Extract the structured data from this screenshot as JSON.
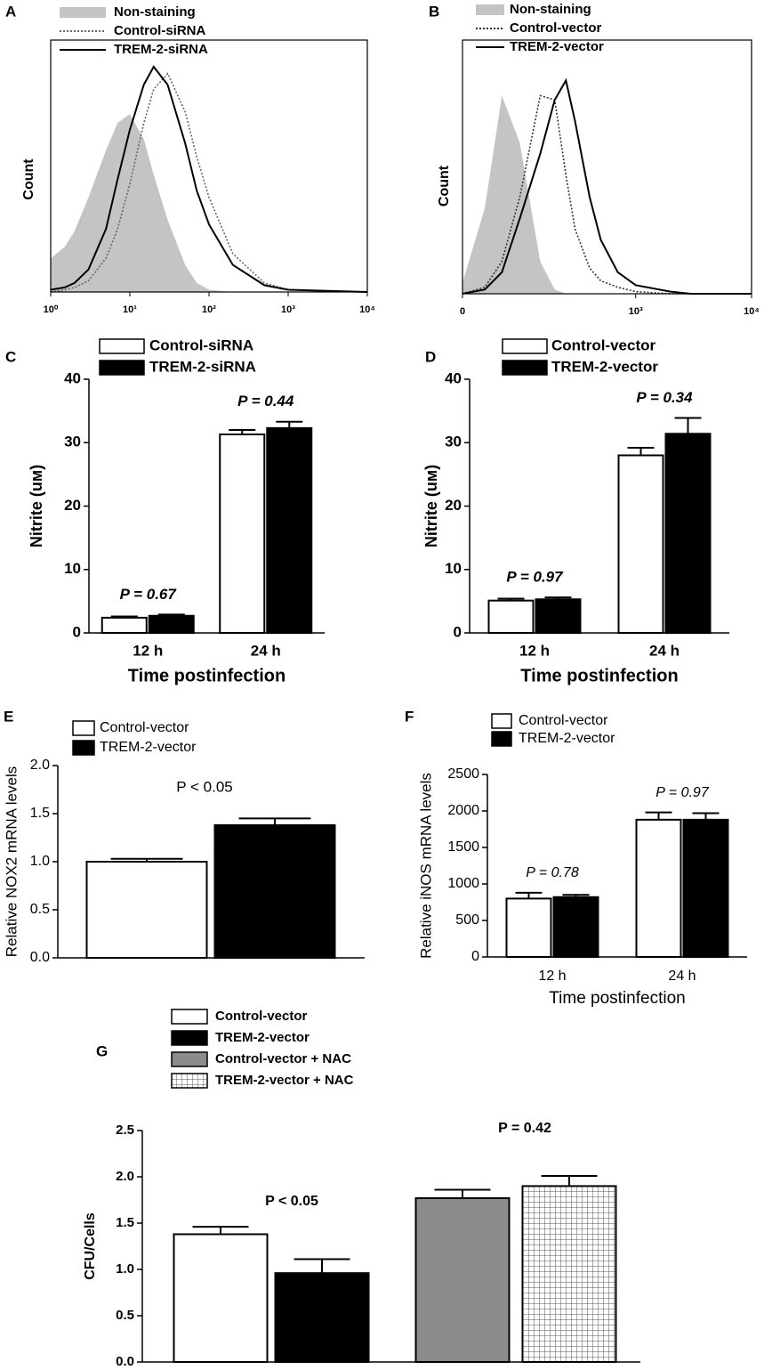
{
  "chart_data": [
    {
      "type": "line",
      "label": "A",
      "ylabel": "Count",
      "xscale": "log",
      "x": [
        1,
        1.5,
        2,
        3,
        5,
        7,
        10,
        15,
        20,
        30,
        50,
        70,
        100,
        200,
        500,
        1000,
        10000
      ],
      "xlim": [
        1,
        10000
      ],
      "xticks": [
        {
          "value": 1,
          "label": "10⁰"
        },
        {
          "value": 10,
          "label": "10¹"
        },
        {
          "value": 100,
          "label": "10²"
        },
        {
          "value": 1000,
          "label": "10³"
        },
        {
          "value": 10000,
          "label": "10⁴"
        }
      ],
      "ylim": [
        0,
        100
      ],
      "series": [
        {
          "name": "Non-staining",
          "color": "#c4c4c4",
          "style": "filled",
          "values": [
            15,
            20,
            27,
            42,
            63,
            75,
            79,
            68,
            52,
            32,
            12,
            4,
            1,
            0,
            0,
            0,
            0
          ]
        },
        {
          "name": "Control-siRNA",
          "color": "#666666",
          "style": "dotted",
          "values": [
            0,
            1,
            2,
            5,
            15,
            28,
            48,
            75,
            90,
            97,
            80,
            60,
            42,
            17,
            4,
            1,
            0
          ]
        },
        {
          "name": "TREM-2-siRNA",
          "color": "#000000",
          "style": "solid",
          "values": [
            1,
            2,
            4,
            10,
            28,
            50,
            72,
            92,
            100,
            92,
            66,
            45,
            30,
            12,
            3,
            1,
            0
          ]
        }
      ]
    },
    {
      "type": "line",
      "label": "B",
      "ylabel": "Count",
      "xscale": "log",
      "x": [
        32,
        50,
        70,
        100,
        150,
        200,
        250,
        300,
        400,
        500,
        700,
        1000,
        2000,
        3000,
        10000
      ],
      "xlim": [
        32,
        10000
      ],
      "xticks": [
        0,
        {
          "value": 1000,
          "label": "10³"
        },
        {
          "value": 10000,
          "label": "10⁴"
        }
      ],
      "ylim": [
        0,
        100
      ],
      "series": [
        {
          "name": "Non-staining",
          "color": "#c4c4c4",
          "style": "filled",
          "values": [
            5,
            40,
            92,
            70,
            15,
            2,
            0,
            0,
            0,
            0,
            0,
            0,
            0,
            0,
            0
          ]
        },
        {
          "name": "Control-vector",
          "color": "#333333",
          "style": "dotted",
          "values": [
            0,
            3,
            15,
            45,
            92,
            90,
            55,
            30,
            12,
            6,
            3,
            1,
            0,
            0,
            0
          ]
        },
        {
          "name": "TREM-2-vector",
          "color": "#000000",
          "style": "solid",
          "values": [
            0,
            2,
            10,
            35,
            65,
            90,
            99,
            80,
            45,
            25,
            10,
            4,
            1,
            0,
            0
          ]
        }
      ]
    },
    {
      "type": "bar",
      "label": "C",
      "ylabel": "Nitrite (uᴍ)",
      "xlabel": "Time postinfection",
      "categories": [
        "12 h",
        "24 h"
      ],
      "annotations": [
        "P = 0.67",
        "P = 0.44"
      ],
      "ylim": [
        0,
        40
      ],
      "yticks": [
        0,
        10,
        20,
        30,
        40
      ],
      "series": [
        {
          "name": "Control-siRNA",
          "color": "#ffffff",
          "values": [
            2.4,
            31.3
          ],
          "errors": [
            0.2,
            0.7
          ]
        },
        {
          "name": "TREM-2-siRNA",
          "color": "#000000",
          "values": [
            2.7,
            32.3
          ],
          "errors": [
            0.2,
            1.0
          ]
        }
      ]
    },
    {
      "type": "bar",
      "label": "D",
      "ylabel": "Nitrite (uᴍ)",
      "xlabel": "Time postinfection",
      "categories": [
        "12 h",
        "24 h"
      ],
      "annotations": [
        "P = 0.97",
        "P = 0.34"
      ],
      "ylim": [
        0,
        40
      ],
      "yticks": [
        0,
        10,
        20,
        30,
        40
      ],
      "series": [
        {
          "name": "Control-vector",
          "color": "#ffffff",
          "values": [
            5.1,
            28.0
          ],
          "errors": [
            0.3,
            1.2
          ]
        },
        {
          "name": "TREM-2-vector",
          "color": "#000000",
          "values": [
            5.3,
            31.4
          ],
          "errors": [
            0.3,
            2.5
          ]
        }
      ]
    },
    {
      "type": "bar",
      "label": "E",
      "ylabel": "Relative NOX2 mRNA levels",
      "annotations": [
        "P < 0.05"
      ],
      "ylim": [
        0,
        2
      ],
      "yticks": [
        {
          "value": 0,
          "label": "0.0"
        },
        0.5,
        {
          "value": 1,
          "label": "1.0"
        },
        1.5,
        {
          "value": 2,
          "label": "2.0"
        }
      ],
      "series": [
        {
          "name": "Control-vector",
          "color": "#ffffff",
          "values": [
            1.0
          ],
          "errors": [
            0.03
          ]
        },
        {
          "name": "TREM-2-vector",
          "color": "#000000",
          "values": [
            1.38
          ],
          "errors": [
            0.07
          ]
        }
      ]
    },
    {
      "type": "bar",
      "label": "F",
      "ylabel": "Relative iNOS mRNA levels",
      "xlabel": "Time postinfection",
      "categories": [
        "12 h",
        "24 h"
      ],
      "annotations": [
        "P = 0.78",
        "P = 0.97"
      ],
      "ylim": [
        0,
        2500
      ],
      "yticks": [
        0,
        500,
        1000,
        1500,
        2000,
        2500
      ],
      "series": [
        {
          "name": "Control-vector",
          "color": "#ffffff",
          "values": [
            800,
            1880
          ],
          "errors": [
            80,
            100
          ]
        },
        {
          "name": "TREM-2-vector",
          "color": "#000000",
          "values": [
            820,
            1880
          ],
          "errors": [
            30,
            90
          ]
        }
      ]
    },
    {
      "type": "bar",
      "label": "G",
      "ylabel": "CFU/Cells",
      "annotations": [
        "P < 0.05",
        "P = 0.42"
      ],
      "ylim": [
        0,
        2.5
      ],
      "yticks": [
        {
          "value": 0,
          "label": "0.0"
        },
        0.5,
        {
          "value": 1,
          "label": "1.0"
        },
        1.5,
        {
          "value": 2,
          "label": "2.0"
        },
        2.5
      ],
      "series": [
        {
          "name": "Control-vector",
          "color": "#ffffff",
          "values": [
            1.38
          ],
          "errors": [
            0.08
          ]
        },
        {
          "name": "TREM-2-vector",
          "color": "#000000",
          "values": [
            0.96
          ],
          "errors": [
            0.15
          ]
        },
        {
          "name": "Control-vector + NAC",
          "color": "#8c8c8c",
          "values": [
            1.77
          ],
          "errors": [
            0.09
          ]
        },
        {
          "name": "TREM-2-vector + NAC",
          "color": "#555555",
          "hatch": "grid",
          "values": [
            1.9
          ],
          "errors": [
            0.11
          ]
        }
      ]
    }
  ]
}
